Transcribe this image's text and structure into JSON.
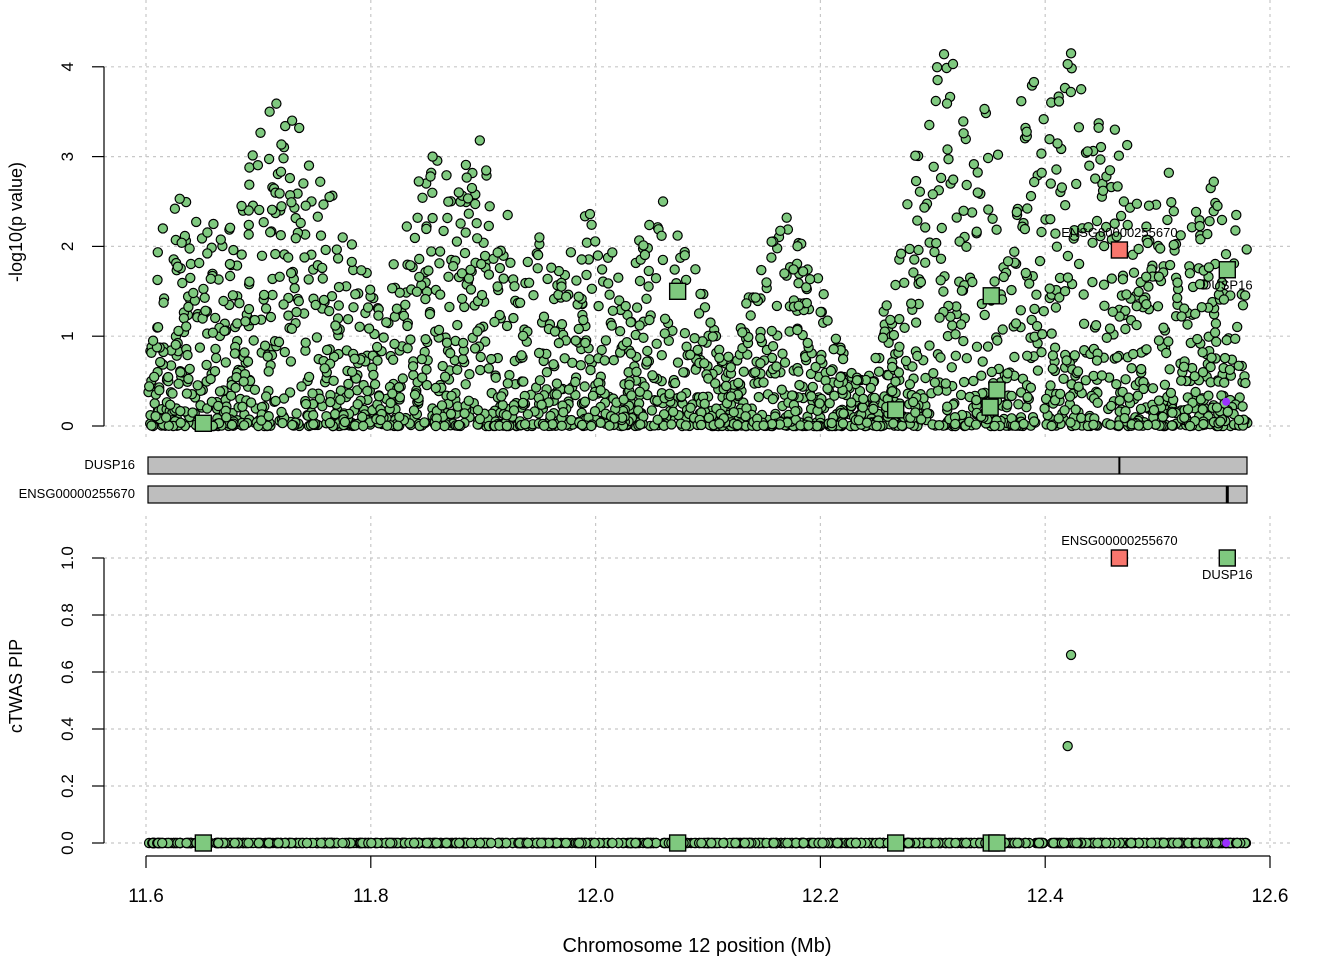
{
  "chart_data": [
    {
      "type": "scatter",
      "panel": "top",
      "ylabel": "-log10(p value)",
      "ylim": [
        0,
        4.4
      ],
      "yticks": [
        "0",
        "1",
        "2",
        "3",
        "4"
      ],
      "xlim": [
        11.6,
        12.58
      ],
      "grid": true,
      "variant_color": "#7fc97f",
      "gene_highlight_color": "#f8766d",
      "snp_highlight_color": "#9b30ff",
      "genes": [
        {
          "id": "ENSG00000255670",
          "x": 12.466,
          "y": 1.96,
          "label": "ENSG00000255670",
          "highlight": true
        },
        {
          "id": "DUSP16",
          "x": 12.562,
          "y": 1.74,
          "label": "DUSP16",
          "highlight": false
        },
        {
          "id": "gene3",
          "x": 11.651,
          "y": 0.03,
          "label": "",
          "highlight": false
        },
        {
          "id": "gene4",
          "x": 12.073,
          "y": 1.5,
          "label": "",
          "highlight": false
        },
        {
          "id": "gene5",
          "x": 12.267,
          "y": 0.18,
          "label": "",
          "highlight": false
        },
        {
          "id": "gene6",
          "x": 12.352,
          "y": 1.45,
          "label": "",
          "highlight": false
        },
        {
          "id": "gene7",
          "x": 12.351,
          "y": 0.21,
          "label": "",
          "highlight": false
        },
        {
          "id": "gene8",
          "x": 12.357,
          "y": 0.4,
          "label": "",
          "highlight": false
        }
      ],
      "snp_highlight": {
        "x": 12.561,
        "y": 0.27
      },
      "peaks": [
        {
          "x": 11.615,
          "y": 2.2
        },
        {
          "x": 11.63,
          "y": 2.53
        },
        {
          "x": 11.66,
          "y": 2.25
        },
        {
          "x": 11.685,
          "y": 2.45
        },
        {
          "x": 11.71,
          "y": 3.5
        },
        {
          "x": 11.716,
          "y": 3.59
        },
        {
          "x": 11.73,
          "y": 3.4
        },
        {
          "x": 11.745,
          "y": 2.9
        },
        {
          "x": 11.755,
          "y": 2.72
        },
        {
          "x": 11.775,
          "y": 2.1
        },
        {
          "x": 11.855,
          "y": 3.0
        },
        {
          "x": 11.89,
          "y": 2.65
        },
        {
          "x": 11.897,
          "y": 3.18
        },
        {
          "x": 11.95,
          "y": 2.1
        },
        {
          "x": 11.995,
          "y": 2.36
        },
        {
          "x": 12.06,
          "y": 2.5
        },
        {
          "x": 12.17,
          "y": 2.32
        },
        {
          "x": 12.31,
          "y": 4.14
        },
        {
          "x": 12.34,
          "y": 2.6
        },
        {
          "x": 12.346,
          "y": 3.53
        },
        {
          "x": 12.39,
          "y": 3.83
        },
        {
          "x": 12.405,
          "y": 2.7
        },
        {
          "x": 12.42,
          "y": 4.03
        },
        {
          "x": 12.423,
          "y": 4.15
        },
        {
          "x": 12.432,
          "y": 3.75
        },
        {
          "x": 12.462,
          "y": 3.3
        },
        {
          "x": 12.47,
          "y": 2.5
        },
        {
          "x": 12.51,
          "y": 2.82
        },
        {
          "x": 12.55,
          "y": 2.72
        },
        {
          "x": 12.57,
          "y": 2.35
        }
      ]
    },
    {
      "type": "scatter",
      "panel": "bottom",
      "ylabel": "cTWAS PIP",
      "ylim": [
        0,
        1.0
      ],
      "yticks": [
        "0.0",
        "0.2",
        "0.4",
        "0.6",
        "0.8",
        "1.0"
      ],
      "xlim": [
        11.6,
        12.58
      ],
      "xticks": [
        "11.6",
        "11.8",
        "12.0",
        "12.2",
        "12.4",
        "12.6"
      ],
      "xlabel": "Chromosome 12 position (Mb)",
      "grid": true,
      "genes": [
        {
          "id": "ENSG00000255670",
          "x": 12.466,
          "y": 1.0,
          "label": "ENSG00000255670",
          "highlight": true
        },
        {
          "id": "DUSP16",
          "x": 12.562,
          "y": 1.0,
          "label": "DUSP16",
          "highlight": false
        },
        {
          "id": "gene3",
          "x": 11.651,
          "y": 0.0,
          "label": "",
          "highlight": false
        },
        {
          "id": "gene4",
          "x": 12.073,
          "y": 0.0,
          "label": "",
          "highlight": false
        },
        {
          "id": "gene5",
          "x": 12.267,
          "y": 0.0,
          "label": "",
          "highlight": false
        },
        {
          "id": "gene6",
          "x": 12.352,
          "y": 0.0,
          "label": "",
          "highlight": false
        },
        {
          "id": "gene7",
          "x": 12.357,
          "y": 0.0,
          "label": "",
          "highlight": false
        }
      ],
      "snps_nonzero": [
        {
          "x": 12.423,
          "y": 0.66
        },
        {
          "x": 12.42,
          "y": 0.34
        }
      ],
      "snp_highlight": {
        "x": 12.561,
        "y": 0.0
      }
    }
  ],
  "gene_tracks": [
    {
      "label": "DUSP16",
      "start": 11.602,
      "end": 12.58,
      "marker": 12.466
    },
    {
      "label": "ENSG00000255670",
      "start": 11.602,
      "end": 12.58,
      "marker": 12.562
    }
  ]
}
